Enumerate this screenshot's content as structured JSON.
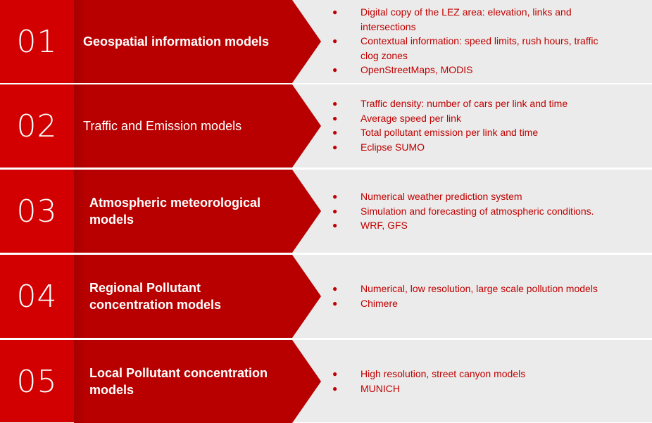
{
  "rows": [
    {
      "number": "01",
      "title": "Geospatial information models",
      "bullets": [
        "Digital copy of the LEZ area: elevation, links and intersections",
        "Contextual information: speed limits, rush hours, traffic clog zones",
        "OpenStreetMaps, MODIS"
      ]
    },
    {
      "number": "02",
      "title": "Traffic and Emission models",
      "bullets": [
        "Traffic density: number of cars per link and time",
        "Average speed per link",
        "Total pollutant emission per link and time",
        "Eclipse SUMO"
      ]
    },
    {
      "number": "03",
      "title": "Atmospheric meteorological models",
      "bullets": [
        "Numerical weather prediction system",
        "Simulation and forecasting of atmospheric conditions.",
        "WRF, GFS"
      ]
    },
    {
      "number": "04",
      "title": "Regional Pollutant concentration models",
      "bullets": [
        "Numerical, low resolution, large scale pollution models",
        "Chimere"
      ]
    },
    {
      "number": "05",
      "title": "Local Pollutant concentration models",
      "bullets": [
        "High resolution, street canyon models",
        "MUNICH"
      ]
    }
  ],
  "bullet_glyph": "●",
  "colors": {
    "number_box": "#d20000",
    "arrow": "#b80000",
    "background": "#ebebeb",
    "bullet_text": "#c00000",
    "title_text": "#ffffff"
  }
}
